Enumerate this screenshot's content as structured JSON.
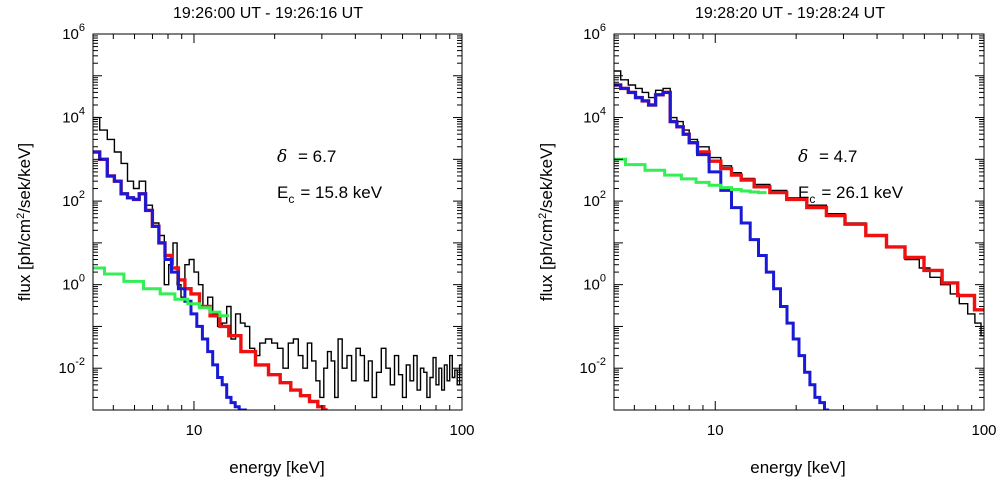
{
  "chart_data": [
    {
      "type": "line",
      "title": "19:26:00 UT  -  19:26:16 UT",
      "xlabel": "energy [keV]",
      "ylabel": "flux  [ph/cm2/sek/keV]",
      "xscale": "log",
      "yscale": "log",
      "xlim": [
        4.2,
        100
      ],
      "ylim": [
        0.001,
        1000000
      ],
      "xticks": [
        "10",
        "100"
      ],
      "yticks": [
        "10-2",
        "100",
        "102",
        "104",
        "106"
      ],
      "annotations": {
        "delta_symbol": "δ",
        "delta_text": "= 6.7",
        "ec_main": "E",
        "ec_sub": "c",
        "ec_text": "= 15.8  keV"
      },
      "series": [
        {
          "color": "#000000",
          "x": [
            4.3,
            4.6,
            4.9,
            5.2,
            5.5,
            5.8,
            6.1,
            6.4,
            6.8,
            7.2,
            7.6,
            7.9,
            8.2,
            8.5,
            8.8,
            9.1,
            9.4,
            9.8,
            10.2,
            10.6,
            11.0,
            11.5,
            12.0,
            12.5,
            13.0,
            13.5,
            14.0,
            14.6,
            15.2,
            15.8,
            16.5,
            17.2,
            18.0,
            19.0,
            20.0,
            21.0,
            22.0,
            23.0,
            24.0,
            25.0,
            26.0,
            27.0,
            28.0,
            29.0,
            30.0,
            31.0,
            32.0,
            33.0,
            34.0,
            35.0,
            36.5,
            38.0,
            39.5,
            41.0,
            42.5,
            44.0,
            45.5,
            47.0,
            49.0,
            51.0,
            53.0,
            55.0,
            57.0,
            59.0,
            61.0,
            63.0,
            65.0,
            67.0,
            69.0,
            71.0,
            73.0,
            75.0,
            77.0,
            79.0,
            81.0,
            83.0,
            85.0,
            87.0,
            89.0,
            91.0,
            93.0,
            95.0,
            97.0,
            99.0
          ],
          "values": [
            10000,
            5000,
            3000,
            1500,
            800,
            300,
            200,
            300,
            80,
            30,
            15,
            1,
            3,
            10,
            1,
            0.5,
            3,
            4,
            2,
            1,
            0.3,
            0.5,
            0.2,
            0.1,
            0.12,
            0.3,
            0.05,
            0.2,
            0.12,
            0.1,
            0.03,
            0.02,
            0.04,
            0.05,
            0.04,
            0.03,
            0.01,
            0.04,
            0.05,
            0.02,
            0.01,
            0.04,
            0.015,
            0.005,
            0.002,
            0.01,
            0.025,
            0.015,
            0.002,
            0.05,
            0.01,
            0.02,
            0.005,
            0.03,
            0.02,
            0.005,
            0.015,
            0.002,
            0.008,
            0.03,
            0.01,
            0.004,
            0.02,
            0.007,
            0.002,
            0.012,
            0.005,
            0.02,
            0.003,
            0.01,
            0.008,
            0.002,
            0.006,
            0.018,
            0.004,
            0.01,
            0.003,
            0.012,
            0.005,
            0.02,
            0.006,
            0.009,
            0.004,
            0.012
          ]
        },
        {
          "color": "#ee1111",
          "x": [
            4.3,
            4.6,
            4.9,
            5.2,
            5.5,
            5.8,
            6.1,
            6.4,
            6.8,
            7.2,
            7.6,
            8.0,
            8.5,
            9.0,
            9.5,
            10.0,
            11.0,
            12.0,
            13.0,
            14.0,
            16.0,
            18.0,
            20.0,
            22.0,
            24.0,
            26.0,
            28.0,
            30.0,
            31.0
          ],
          "values": [
            1500,
            1000,
            400,
            300,
            150,
            120,
            110,
            150,
            60,
            25,
            10,
            5,
            2.5,
            1.3,
            0.8,
            0.6,
            0.3,
            0.18,
            0.1,
            0.06,
            0.025,
            0.012,
            0.007,
            0.0045,
            0.003,
            0.0022,
            0.0016,
            0.0012,
            0.001
          ]
        },
        {
          "color": "#1a1ad6",
          "x": [
            4.3,
            4.6,
            4.9,
            5.2,
            5.5,
            5.8,
            6.1,
            6.4,
            6.8,
            7.2,
            7.6,
            8.0,
            8.5,
            9.0,
            9.5,
            10.0,
            10.5,
            11.0,
            11.5,
            12.0,
            12.5,
            13.0,
            13.5,
            14.0,
            14.5,
            15.0,
            15.5
          ],
          "values": [
            1500,
            1000,
            400,
            300,
            150,
            120,
            110,
            150,
            60,
            25,
            10,
            4,
            2,
            0.8,
            0.4,
            0.2,
            0.1,
            0.05,
            0.025,
            0.012,
            0.006,
            0.004,
            0.002,
            0.0015,
            0.0012,
            0.001,
            0.001
          ]
        },
        {
          "color": "#33ee55",
          "x": [
            4.3,
            5.0,
            6.0,
            7.0,
            8.0,
            9.0,
            10.0,
            11.0,
            12.0,
            13.0
          ],
          "values": [
            2.5,
            1.8,
            1.2,
            0.8,
            0.6,
            0.45,
            0.35,
            0.28,
            0.22,
            0.18
          ]
        }
      ]
    },
    {
      "type": "line",
      "title": "19:28:20 UT  -  19:28:24 UT",
      "xlabel": "energy [keV]",
      "ylabel": "flux  [ph/cm2/sek/keV]",
      "xscale": "log",
      "yscale": "log",
      "xlim": [
        4.2,
        100
      ],
      "ylim": [
        0.001,
        1000000
      ],
      "xticks": [
        "10",
        "100"
      ],
      "yticks": [
        "10-2",
        "100",
        "102",
        "104",
        "106"
      ],
      "annotations": {
        "delta_symbol": "δ",
        "delta_text": "= 4.7",
        "ec_main": "E",
        "ec_sub": "c",
        "ec_text": "= 26.1  keV"
      },
      "series": [
        {
          "color": "#000000",
          "x": [
            4.3,
            4.6,
            4.9,
            5.2,
            5.5,
            5.8,
            6.2,
            6.6,
            7.0,
            7.4,
            7.8,
            8.2,
            9.0,
            10.0,
            11.0,
            12.0,
            13.0,
            15.0,
            17.0,
            20.0,
            24.0,
            28.0,
            33.0,
            40.0,
            47.0,
            55.0,
            60.0,
            66.0,
            72.0,
            78.0,
            84.0,
            90.0,
            95.0,
            100.0
          ],
          "values": [
            130000,
            80000,
            60000,
            50000,
            40000,
            30000,
            45000,
            50000,
            10000,
            8000,
            5000,
            3000,
            2000,
            1100,
            700,
            480,
            350,
            250,
            180,
            120,
            80,
            50,
            30,
            15,
            8,
            4,
            2.5,
            1.5,
            1.0,
            0.6,
            0.35,
            0.2,
            0.12,
            0.06
          ]
        },
        {
          "color": "#ee1111",
          "x": [
            4.3,
            4.6,
            4.9,
            5.2,
            5.5,
            5.8,
            6.2,
            6.6,
            7.0,
            7.4,
            7.8,
            8.2,
            9.0,
            10.0,
            11.0,
            12.0,
            13.0,
            15.0,
            17.0,
            20.0,
            24.0,
            28.0,
            33.0,
            40.0,
            47.0,
            55.0,
            65.0,
            75.0,
            85.0,
            100.0
          ],
          "values": [
            60000,
            50000,
            40000,
            30000,
            25000,
            20000,
            35000,
            40000,
            8000,
            6000,
            4000,
            2500,
            1500,
            900,
            600,
            420,
            320,
            220,
            160,
            110,
            70,
            45,
            28,
            15,
            8,
            4.5,
            2.2,
            1.1,
            0.55,
            0.25
          ]
        },
        {
          "color": "#1a1ad6",
          "x": [
            4.3,
            4.6,
            4.9,
            5.2,
            5.5,
            5.8,
            6.2,
            6.6,
            7.0,
            7.4,
            7.8,
            8.2,
            9.0,
            10.0,
            11.0,
            12.0,
            13.0,
            14.0,
            15.0,
            16.0,
            17.0,
            18.0,
            19.0,
            20.0,
            21.0,
            22.0,
            23.0,
            24.0,
            25.0,
            26.0
          ],
          "values": [
            60000,
            50000,
            40000,
            30000,
            25000,
            20000,
            35000,
            40000,
            8000,
            6000,
            4000,
            2500,
            1300,
            500,
            180,
            70,
            30,
            12,
            5,
            2,
            0.8,
            0.3,
            0.12,
            0.05,
            0.02,
            0.008,
            0.004,
            0.002,
            0.0015,
            0.001
          ]
        },
        {
          "color": "#33ee55",
          "x": [
            4.3,
            5.0,
            6.0,
            7.0,
            8.0,
            9.0,
            10.0,
            11.0,
            12.0,
            13.0,
            14.0,
            15.0
          ],
          "values": [
            1000,
            750,
            550,
            420,
            340,
            280,
            240,
            210,
            190,
            175,
            165,
            160
          ]
        }
      ]
    }
  ]
}
